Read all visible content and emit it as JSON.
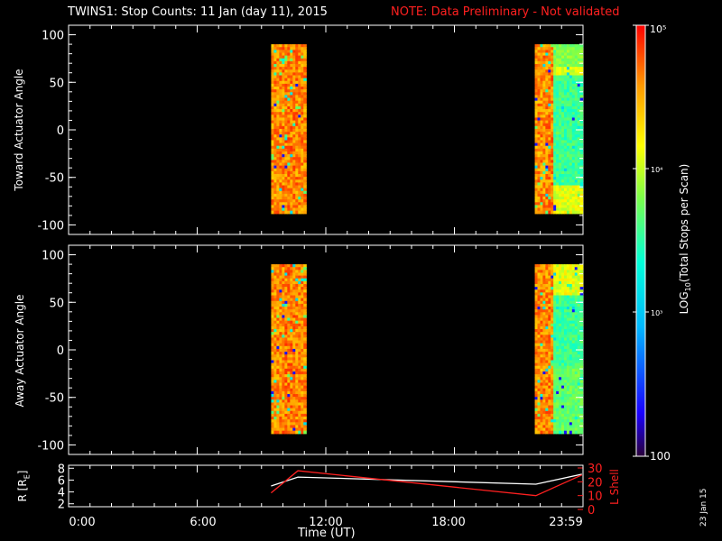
{
  "title": {
    "main": "TWINS1: Stop Counts: 11 Jan (day  11), 2015",
    "note": "NOTE: Data Preliminary - Not validated"
  },
  "colors": {
    "background": "#000000",
    "axes": "#ffffff",
    "note": "#ff2020",
    "r_line": "#ffffff",
    "lshell_line": "#ff2020"
  },
  "chart_data": [
    {
      "type": "heatmap",
      "ylabel": "Toward Actuator Angle",
      "ylim": [
        -110,
        110
      ],
      "yticks": [
        -100,
        -50,
        0,
        50,
        100
      ],
      "xlim_hours": [
        0,
        24
      ],
      "colorscale": "log10 rainbow (100 to 1e5)",
      "blocks": [
        {
          "t_start": "09:27",
          "t_end": "11:05",
          "angle_range": [
            -88,
            90
          ]
        },
        {
          "t_start": "21:45",
          "t_end": "23:59",
          "angle_range": [
            -88,
            90
          ]
        }
      ]
    },
    {
      "type": "heatmap",
      "ylabel": "Away Actuator Angle",
      "ylim": [
        -110,
        110
      ],
      "yticks": [
        -100,
        -50,
        0,
        50,
        100
      ],
      "xlim_hours": [
        0,
        24
      ],
      "colorscale": "log10 rainbow (100 to 1e5)",
      "blocks": [
        {
          "t_start": "09:27",
          "t_end": "11:05",
          "angle_range": [
            -88,
            90
          ]
        },
        {
          "t_start": "21:45",
          "t_end": "23:59",
          "angle_range": [
            -88,
            90
          ]
        }
      ]
    },
    {
      "type": "line",
      "ylabel_left": "R [RE]",
      "ylabel_right": "L Shell",
      "left_yticks": [
        2,
        4,
        6,
        8
      ],
      "right_yticks": [
        0,
        10,
        20,
        30
      ],
      "xlabel": "Time (UT)",
      "xticks": [
        "0:00",
        "6:00",
        "12:00",
        "18:00",
        "23:59"
      ],
      "series": [
        {
          "name": "R",
          "axis": "left",
          "x_hours": [
            9.45,
            10.7,
            21.8,
            23.95
          ],
          "y": [
            5.0,
            6.5,
            5.3,
            7.0
          ]
        },
        {
          "name": "L Shell",
          "axis": "right",
          "x_hours": [
            9.45,
            10.7,
            21.8,
            23.95
          ],
          "y": [
            12,
            28,
            10,
            25
          ]
        }
      ]
    }
  ],
  "colorbar": {
    "label": "LOG10(Total Stops per Scan)",
    "ticks": [
      "10^5",
      "10^4",
      "10^3",
      "100"
    ],
    "top": "10⁵",
    "mid1": "10⁴",
    "mid2": "10³",
    "bottom": "100"
  },
  "stamp": "23 Jan 15"
}
